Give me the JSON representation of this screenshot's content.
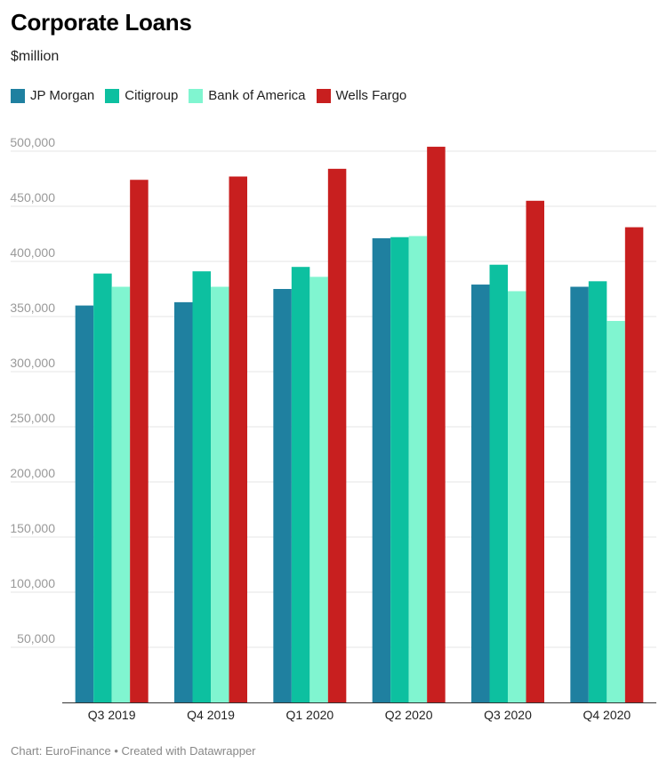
{
  "header": {
    "title": "Corporate Loans",
    "subtitle": "$million"
  },
  "footer": {
    "credit": "Chart: EuroFinance • Created with Datawrapper"
  },
  "chart_data": {
    "type": "bar",
    "categories": [
      "Q3 2019",
      "Q4 2019",
      "Q1 2020",
      "Q2 2020",
      "Q3 2020",
      "Q4 2020"
    ],
    "series": [
      {
        "name": "JP Morgan",
        "color": "#1f80a0",
        "values": [
          360000,
          363000,
          375000,
          421000,
          379000,
          377000
        ]
      },
      {
        "name": "Citigroup",
        "color": "#0dc0a0",
        "values": [
          389000,
          391000,
          395000,
          422000,
          397000,
          382000
        ]
      },
      {
        "name": "Bank of America",
        "color": "#80f5d0",
        "values": [
          377000,
          377000,
          386000,
          423000,
          373000,
          346000
        ]
      },
      {
        "name": "Wells Fargo",
        "color": "#c81f1f",
        "values": [
          474000,
          477000,
          484000,
          504000,
          455000,
          431000
        ]
      }
    ],
    "ylim": [
      0,
      500000
    ],
    "yticks": [
      50000,
      100000,
      150000,
      200000,
      250000,
      300000,
      350000,
      400000,
      450000,
      500000
    ],
    "ytick_labels": [
      "50,000",
      "100,000",
      "150,000",
      "200,000",
      "250,000",
      "300,000",
      "350,000",
      "400,000",
      "450,000",
      "500,000"
    ],
    "grid": true,
    "legend": "top-left"
  }
}
